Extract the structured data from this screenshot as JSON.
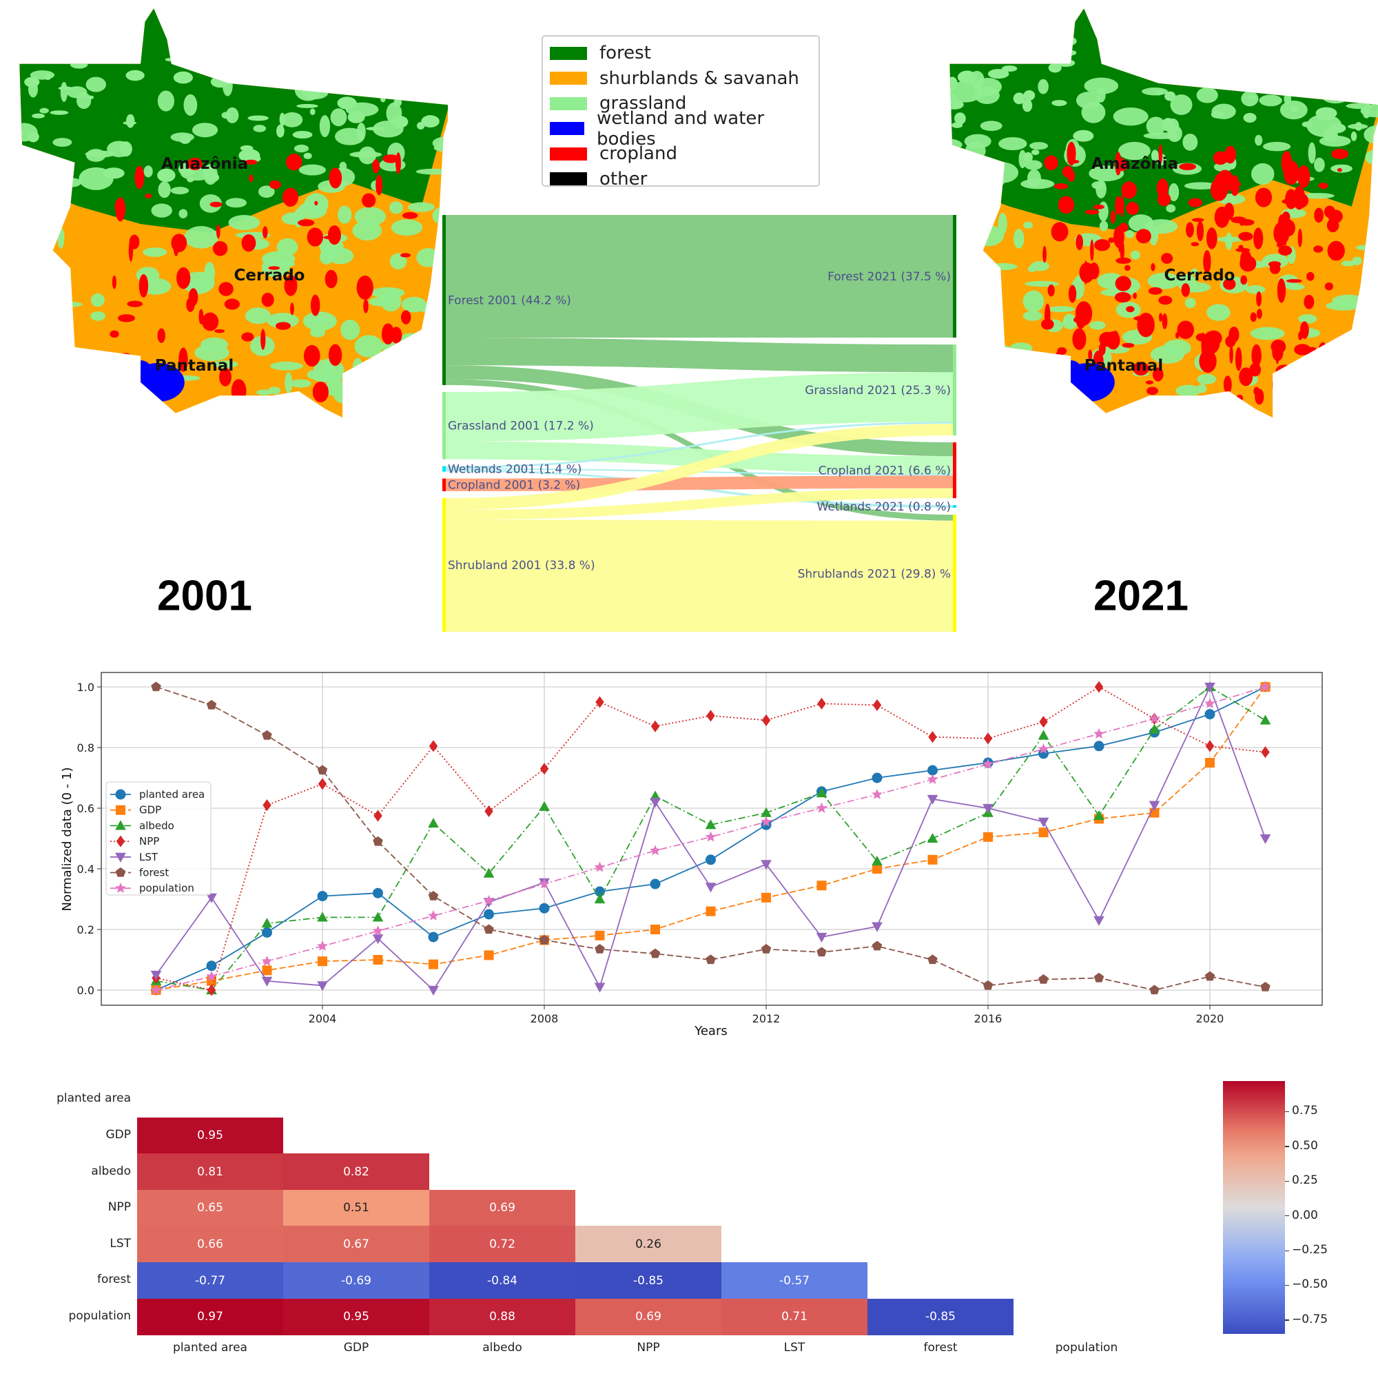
{
  "maps": {
    "left": {
      "year": "2001",
      "regions": [
        "Amazônia",
        "Cerrado",
        "Pantanal"
      ]
    },
    "right": {
      "year": "2021",
      "regions": [
        "Amazônia",
        "Cerrado",
        "Pantanal"
      ]
    }
  },
  "legend": {
    "items": [
      {
        "label": "forest",
        "color": "#008000"
      },
      {
        "label": "shurblands & savanah",
        "color": "#FFA500"
      },
      {
        "label": "grassland",
        "color": "#90EE90"
      },
      {
        "label": "wetland and water bodies",
        "color": "#0000FF"
      },
      {
        "label": "cropland",
        "color": "#FF0000"
      },
      {
        "label": "other",
        "color": "#000000"
      }
    ]
  },
  "chart_data": [
    {
      "type": "sankey",
      "left_nodes": [
        {
          "id": "F",
          "label": "Forest 2001 (44.2 %)",
          "color": "#007a00"
        },
        {
          "id": "G",
          "label": "Grassland 2001 (17.2 %)",
          "color": "#90ee90"
        },
        {
          "id": "W",
          "label": "Wetlands 2001 (1.4 %)",
          "color": "#00e5ff"
        },
        {
          "id": "C",
          "label": "Cropland 2001 (3.2 %)",
          "color": "#ff0000"
        },
        {
          "id": "S",
          "label": "Shrubland 2001 (33.8 %)",
          "color": "#ffff00"
        }
      ],
      "right_nodes": [
        {
          "id": "F",
          "label": "Forest 2021 (37.5 %)",
          "color": "#007a00"
        },
        {
          "id": "G",
          "label": "Grassland 2021 (25.3 %)",
          "color": "#90ee90"
        },
        {
          "id": "C",
          "label": "Cropland 2021 (6.6 %)",
          "color": "#ff0000"
        },
        {
          "id": "W",
          "label": "Wetlands 2021 (0.8 %)",
          "color": "#00e5ff"
        },
        {
          "id": "S",
          "label": "Shrublands 2021 (29.8) %",
          "color": "#ffff00"
        }
      ],
      "link_colors": {
        "F": "#80c880",
        "G": "#bdfdbd",
        "W": "#aeeeee",
        "C": "#ffa07a",
        "S": "#fdfd96"
      },
      "links": [
        {
          "source": "F",
          "target": "F",
          "value": 31
        },
        {
          "source": "F",
          "target": "G",
          "value": 7
        },
        {
          "source": "F",
          "target": "C",
          "value": 3.5
        },
        {
          "source": "F",
          "target": "S",
          "value": 1.5
        },
        {
          "source": "G",
          "target": "G",
          "value": 12.5
        },
        {
          "source": "G",
          "target": "C",
          "value": 4.5
        },
        {
          "source": "W",
          "target": "G",
          "value": 0.5
        },
        {
          "source": "W",
          "target": "C",
          "value": 0.4
        },
        {
          "source": "W",
          "target": "W",
          "value": 0.5
        },
        {
          "source": "C",
          "target": "C",
          "value": 3.2
        },
        {
          "source": "S",
          "target": "G",
          "value": 3
        },
        {
          "source": "S",
          "target": "C",
          "value": 2.5
        },
        {
          "source": "S",
          "target": "S",
          "value": 28.3
        }
      ]
    },
    {
      "type": "line",
      "xlabel": "Years",
      "ylabel": "Normalized data (0 - 1)",
      "xlim": [
        2000,
        2022.2
      ],
      "ylim": [
        -0.05,
        1.05
      ],
      "xticks": [
        "2004",
        "2008",
        "2012",
        "2016",
        "2020"
      ],
      "yticks": [
        "0.0",
        "0.2",
        "0.4",
        "0.6",
        "0.8",
        "1.0"
      ],
      "grid": true,
      "legend_position": "center-left",
      "x": [
        2001,
        2002,
        2003,
        2004,
        2005,
        2006,
        2007,
        2008,
        2009,
        2010,
        2011,
        2012,
        2013,
        2014,
        2015,
        2016,
        2017,
        2018,
        2019,
        2020,
        2021
      ],
      "series": [
        {
          "name": "planted area",
          "color": "#1f77b4",
          "dash": "solid",
          "marker": "circle",
          "values": [
            0,
            0.08,
            0.19,
            0.31,
            0.32,
            0.175,
            0.25,
            0.27,
            0.325,
            0.35,
            0.43,
            0.545,
            0.655,
            0.7,
            0.725,
            0.75,
            0.78,
            0.805,
            0.85,
            0.91,
            1.0
          ]
        },
        {
          "name": "GDP",
          "color": "#ff7f0e",
          "dash": "dashed",
          "marker": "square",
          "values": [
            0,
            0.03,
            0.065,
            0.095,
            0.1,
            0.085,
            0.115,
            0.165,
            0.18,
            0.2,
            0.26,
            0.305,
            0.345,
            0.4,
            0.43,
            0.505,
            0.52,
            0.565,
            0.585,
            0.75,
            1.0
          ]
        },
        {
          "name": "albedo",
          "color": "#2ca02c",
          "dash": "dashdot",
          "marker": "triangle-up",
          "values": [
            0.03,
            0.0,
            0.22,
            0.24,
            0.24,
            0.55,
            0.385,
            0.605,
            0.3,
            0.64,
            0.545,
            0.585,
            0.65,
            0.425,
            0.5,
            0.585,
            0.84,
            0.575,
            0.86,
            1.0,
            0.89
          ]
        },
        {
          "name": "NPP",
          "color": "#d62728",
          "dash": "dotted",
          "marker": "diamond",
          "values": [
            0.04,
            0.0,
            0.61,
            0.68,
            0.575,
            0.805,
            0.59,
            0.73,
            0.95,
            0.87,
            0.905,
            0.89,
            0.945,
            0.94,
            0.835,
            0.83,
            0.885,
            1.0,
            0.895,
            0.805,
            0.785
          ]
        },
        {
          "name": "LST",
          "color": "#9467bd",
          "dash": "solid",
          "marker": "triangle-down",
          "values": [
            0.05,
            0.305,
            0.03,
            0.015,
            0.17,
            0.0,
            0.29,
            0.355,
            0.01,
            0.62,
            0.34,
            0.415,
            0.175,
            0.21,
            0.63,
            0.6,
            0.555,
            0.23,
            0.61,
            1.0,
            0.5
          ]
        },
        {
          "name": "forest",
          "color": "#8c564b",
          "dash": "dashed",
          "marker": "pentagon",
          "values": [
            1.0,
            0.94,
            0.84,
            0.725,
            0.49,
            0.31,
            0.2,
            0.165,
            0.135,
            0.12,
            0.1,
            0.135,
            0.125,
            0.145,
            0.1,
            0.015,
            0.035,
            0.04,
            0.0,
            0.045,
            0.01
          ]
        },
        {
          "name": "population",
          "color": "#e377c2",
          "dash": "dashdot",
          "marker": "star",
          "values": [
            0,
            0.045,
            0.095,
            0.145,
            0.195,
            0.245,
            0.295,
            0.35,
            0.405,
            0.46,
            0.505,
            0.555,
            0.6,
            0.645,
            0.695,
            0.745,
            0.795,
            0.845,
            0.895,
            0.945,
            1.0
          ]
        }
      ]
    },
    {
      "type": "heatmap",
      "labels": [
        "planted area",
        "GDP",
        "albedo",
        "NPP",
        "LST",
        "forest",
        "population"
      ],
      "rows": [
        [],
        [
          0.95
        ],
        [
          0.81,
          0.82
        ],
        [
          0.65,
          0.51,
          0.69
        ],
        [
          0.66,
          0.67,
          0.72,
          0.26
        ],
        [
          -0.77,
          -0.69,
          -0.84,
          -0.85,
          -0.57
        ],
        [
          0.97,
          0.95,
          0.88,
          0.69,
          0.71,
          -0.85
        ]
      ],
      "colormap": "coolwarm",
      "vlim": [
        -0.85,
        0.97
      ],
      "colorbar_ticks": [
        "0.75",
        "0.50",
        "0.25",
        "0.00",
        "−0.25",
        "−0.50",
        "−0.75"
      ],
      "colorbar_values": [
        0.75,
        0.5,
        0.25,
        0,
        -0.25,
        -0.5,
        -0.75
      ]
    }
  ]
}
